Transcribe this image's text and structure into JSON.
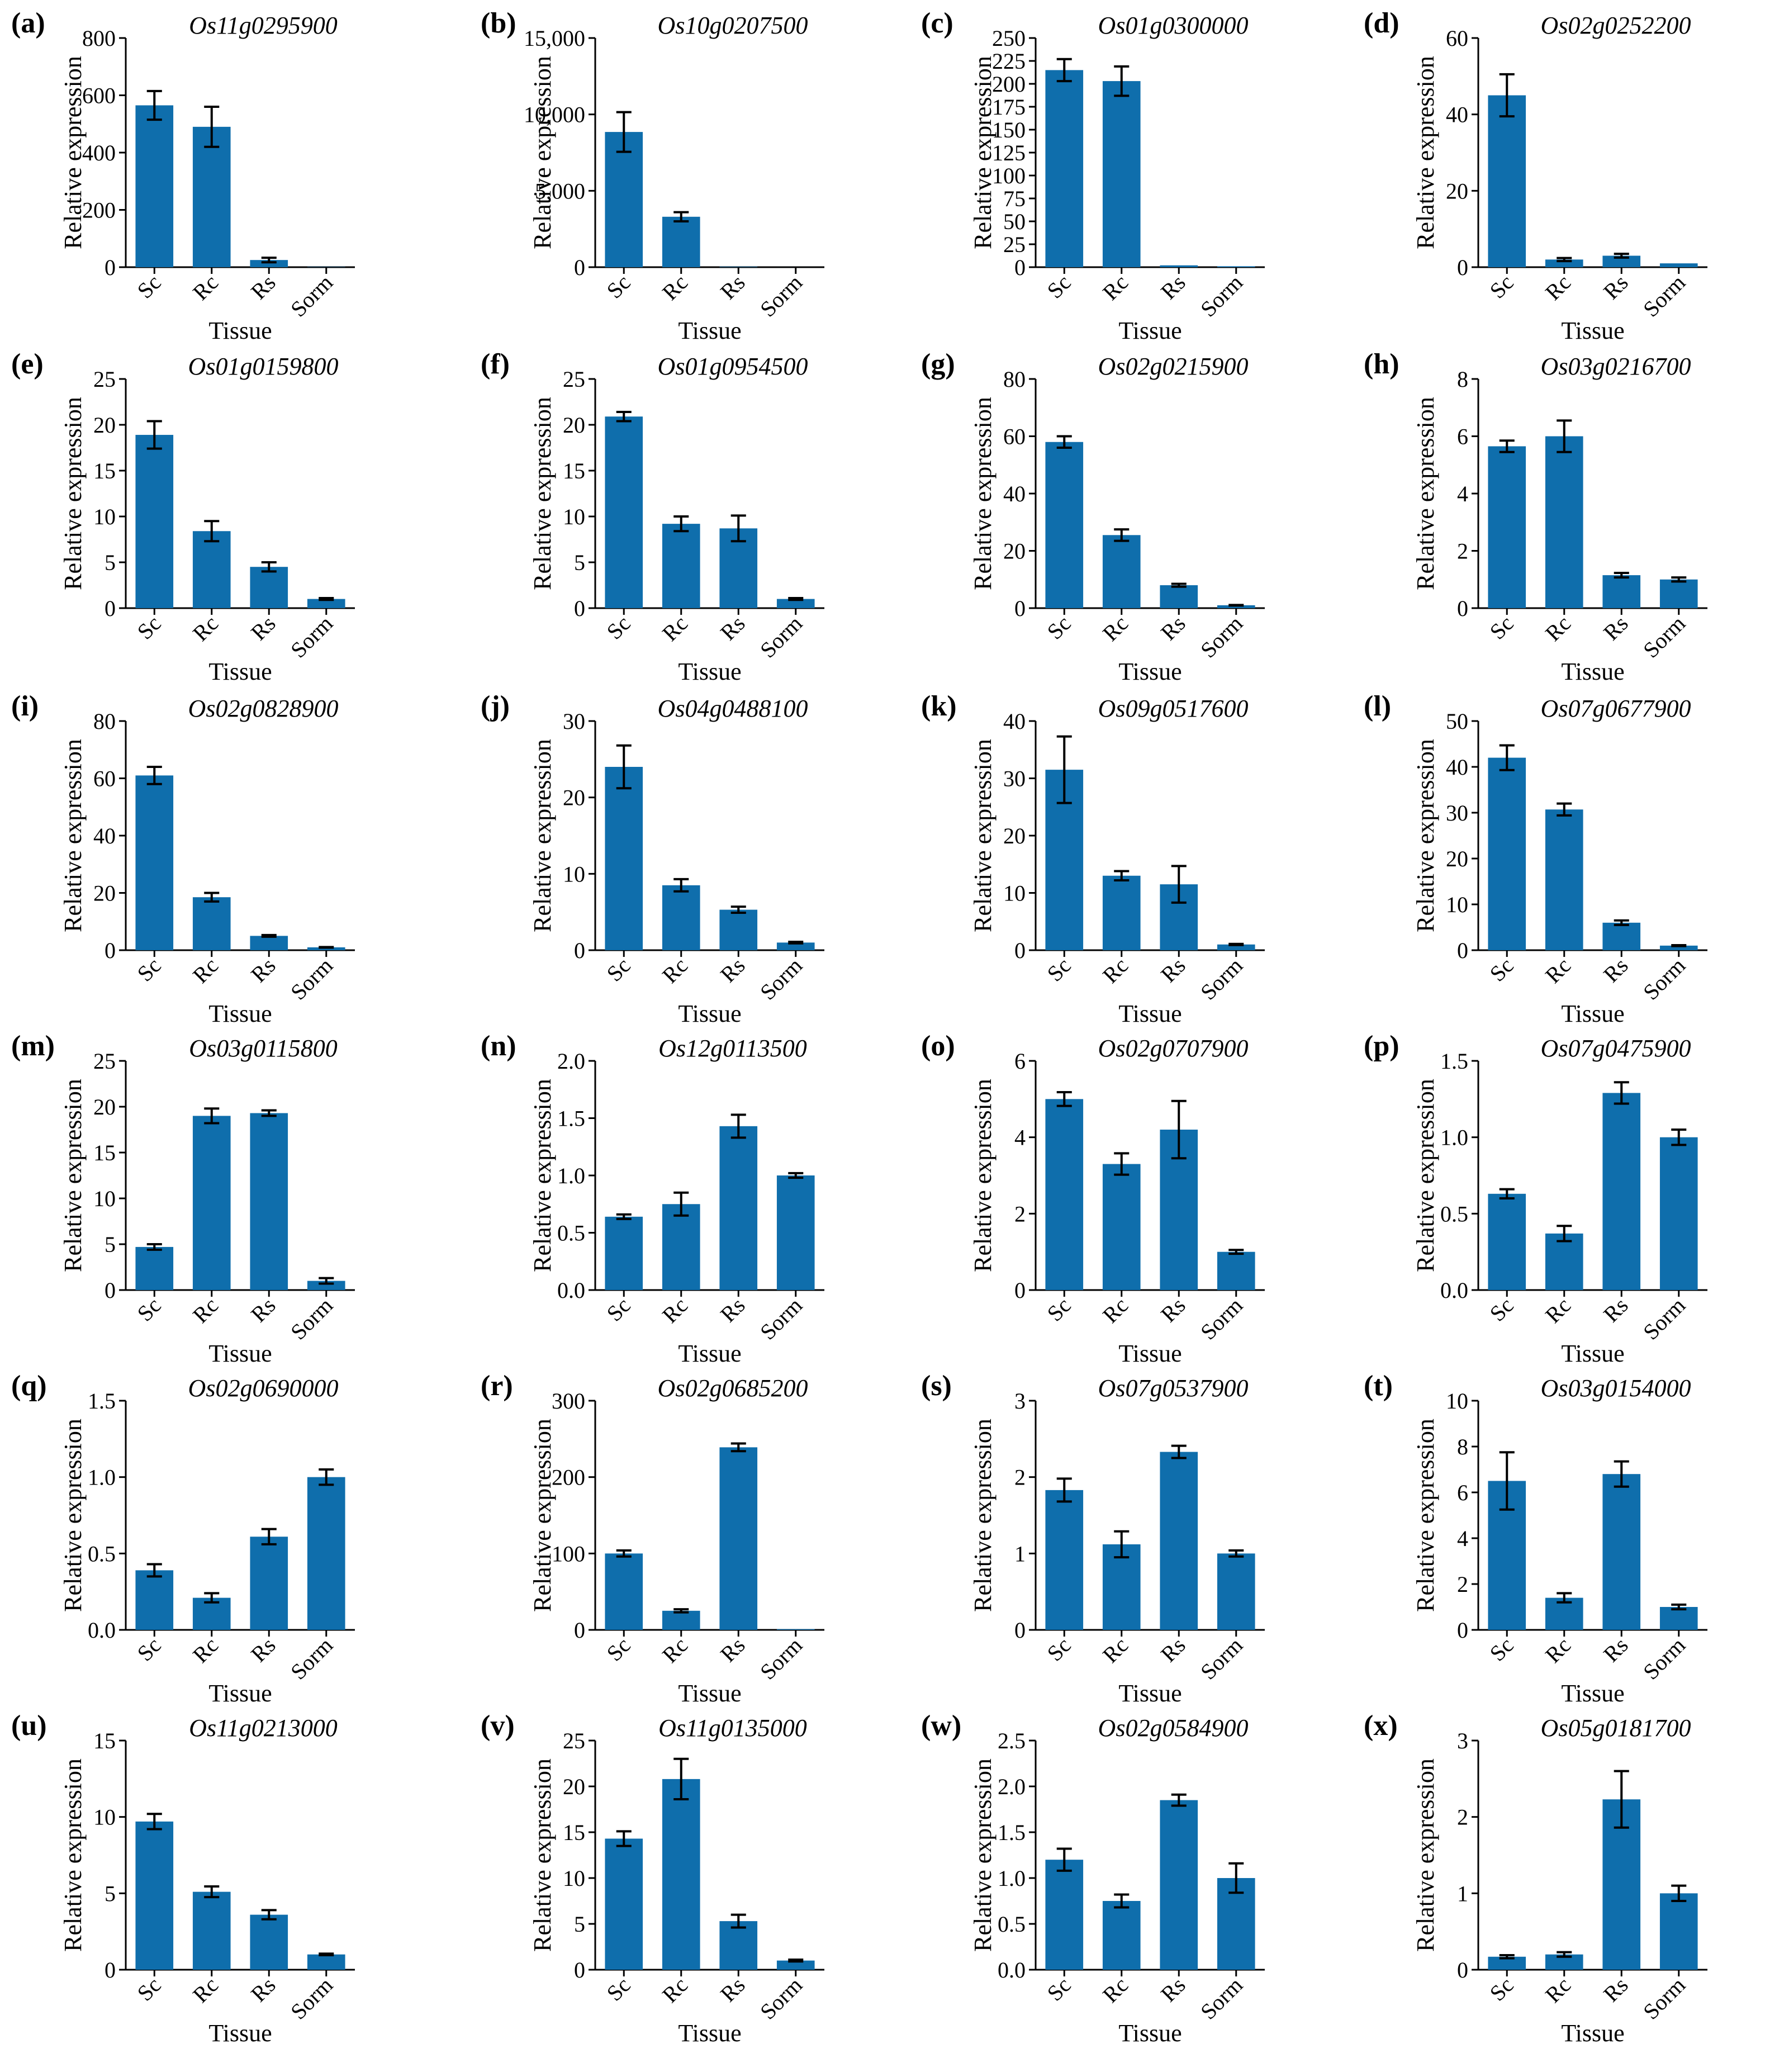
{
  "figure": {
    "categories": [
      "Sc",
      "Rc",
      "Rs",
      "Sorm"
    ],
    "xlabel": "Tissue",
    "ylabel": "Relative expression",
    "bar_color": "#0f6eac"
  },
  "chart_data": [
    {
      "type": "bar",
      "label": "(a)",
      "title": "Os11g0295900",
      "categories": [
        "Sc",
        "Rc",
        "Rs",
        "Sorm"
      ],
      "values": [
        565,
        490,
        25,
        1
      ],
      "errors": [
        50,
        70,
        8,
        0
      ],
      "ylim": [
        0,
        800
      ],
      "yticks": [
        0,
        200,
        400,
        600,
        800
      ],
      "ytick_labels": [
        "0",
        "200",
        "400",
        "600",
        "800"
      ],
      "xlabel": "Tissue",
      "ylabel": "Relative expression"
    },
    {
      "type": "bar",
      "label": "(b)",
      "title": "Os10g0207500",
      "categories": [
        "Sc",
        "Rc",
        "Rs",
        "Sorm"
      ],
      "values": [
        8850,
        3300,
        30,
        1
      ],
      "errors": [
        1300,
        300,
        0,
        0
      ],
      "ylim": [
        0,
        15000
      ],
      "yticks": [
        0,
        5000,
        10000,
        15000
      ],
      "ytick_labels": [
        "0",
        "5,000",
        "10,000",
        "15,000"
      ],
      "xlabel": "Tissue",
      "ylabel": "Relative expression"
    },
    {
      "type": "bar",
      "label": "(c)",
      "title": "Os01g0300000",
      "categories": [
        "Sc",
        "Rc",
        "Rs",
        "Sorm"
      ],
      "values": [
        215,
        203,
        2,
        1
      ],
      "errors": [
        12,
        16,
        0,
        0
      ],
      "ylim": [
        0,
        250
      ],
      "yticks": [
        0,
        25,
        50,
        75,
        100,
        125,
        150,
        175,
        200,
        225,
        250
      ],
      "ytick_labels": [
        "0",
        "25",
        "50",
        "75",
        "100",
        "125",
        "150",
        "175",
        "200",
        "225",
        "250"
      ],
      "xlabel": "Tissue",
      "ylabel": "Relative expression"
    },
    {
      "type": "bar",
      "label": "(d)",
      "title": "Os02g0252200",
      "categories": [
        "Sc",
        "Rc",
        "Rs",
        "Sorm"
      ],
      "values": [
        45,
        2,
        3,
        1
      ],
      "errors": [
        5.5,
        0.4,
        0.5,
        0
      ],
      "ylim": [
        0,
        60
      ],
      "yticks": [
        0,
        20,
        40,
        60
      ],
      "ytick_labels": [
        "0",
        "20",
        "40",
        "60"
      ],
      "xlabel": "Tissue",
      "ylabel": "Relative expression"
    },
    {
      "type": "bar",
      "label": "(e)",
      "title": "Os01g0159800",
      "categories": [
        "Sc",
        "Rc",
        "Rs",
        "Sorm"
      ],
      "values": [
        18.9,
        8.4,
        4.5,
        1
      ],
      "errors": [
        1.5,
        1.1,
        0.5,
        0.1
      ],
      "ylim": [
        0,
        25
      ],
      "yticks": [
        0,
        5,
        10,
        15,
        20,
        25
      ],
      "ytick_labels": [
        "0",
        "5",
        "10",
        "15",
        "20",
        "25"
      ],
      "xlabel": "Tissue",
      "ylabel": "Relative expression"
    },
    {
      "type": "bar",
      "label": "(f)",
      "title": "Os01g0954500",
      "categories": [
        "Sc",
        "Rc",
        "Rs",
        "Sorm"
      ],
      "values": [
        20.9,
        9.2,
        8.7,
        1
      ],
      "errors": [
        0.5,
        0.8,
        1.4,
        0.1
      ],
      "ylim": [
        0,
        25
      ],
      "yticks": [
        0,
        5,
        10,
        15,
        20,
        25
      ],
      "ytick_labels": [
        "0",
        "5",
        "10",
        "15",
        "20",
        "25"
      ],
      "xlabel": "Tissue",
      "ylabel": "Relative expression"
    },
    {
      "type": "bar",
      "label": "(g)",
      "title": "Os02g0215900",
      "categories": [
        "Sc",
        "Rc",
        "Rs",
        "Sorm"
      ],
      "values": [
        58,
        25.5,
        8,
        1
      ],
      "errors": [
        2,
        2,
        0.5,
        0.1
      ],
      "ylim": [
        0,
        80
      ],
      "yticks": [
        0,
        20,
        40,
        60,
        80
      ],
      "ytick_labels": [
        "0",
        "20",
        "40",
        "60",
        "80"
      ],
      "xlabel": "Tissue",
      "ylabel": "Relative expression"
    },
    {
      "type": "bar",
      "label": "(h)",
      "title": "Os03g0216700",
      "categories": [
        "Sc",
        "Rc",
        "Rs",
        "Sorm"
      ],
      "values": [
        5.65,
        6,
        1.15,
        1
      ],
      "errors": [
        0.2,
        0.55,
        0.08,
        0.07
      ],
      "ylim": [
        0,
        8
      ],
      "yticks": [
        0,
        2,
        4,
        6,
        8
      ],
      "ytick_labels": [
        "0",
        "2",
        "4",
        "6",
        "8"
      ],
      "xlabel": "Tissue",
      "ylabel": "Relative expression"
    },
    {
      "type": "bar",
      "label": "(i)",
      "title": "Os02g0828900",
      "categories": [
        "Sc",
        "Rc",
        "Rs",
        "Sorm"
      ],
      "values": [
        61,
        18.5,
        5,
        1
      ],
      "errors": [
        3,
        1.5,
        0.3,
        0.1
      ],
      "ylim": [
        0,
        80
      ],
      "yticks": [
        0,
        20,
        40,
        60,
        80
      ],
      "ytick_labels": [
        "0",
        "20",
        "40",
        "60",
        "80"
      ],
      "xlabel": "Tissue",
      "ylabel": "Relative expression"
    },
    {
      "type": "bar",
      "label": "(j)",
      "title": "Os04g0488100",
      "categories": [
        "Sc",
        "Rc",
        "Rs",
        "Sorm"
      ],
      "values": [
        24,
        8.5,
        5.3,
        1
      ],
      "errors": [
        2.8,
        0.8,
        0.4,
        0.1
      ],
      "ylim": [
        0,
        30
      ],
      "yticks": [
        0,
        10,
        20,
        30
      ],
      "ytick_labels": [
        "0",
        "10",
        "20",
        "30"
      ],
      "xlabel": "Tissue",
      "ylabel": "Relative expression"
    },
    {
      "type": "bar",
      "label": "(k)",
      "title": "Os09g0517600",
      "categories": [
        "Sc",
        "Rc",
        "Rs",
        "Sorm"
      ],
      "values": [
        31.5,
        13,
        11.5,
        1
      ],
      "errors": [
        5.8,
        0.8,
        3.2,
        0.1
      ],
      "ylim": [
        0,
        40
      ],
      "yticks": [
        0,
        10,
        20,
        30,
        40
      ],
      "ytick_labels": [
        "0",
        "10",
        "20",
        "30",
        "40"
      ],
      "xlabel": "Tissue",
      "ylabel": "Relative expression"
    },
    {
      "type": "bar",
      "label": "(l)",
      "title": "Os07g0677900",
      "categories": [
        "Sc",
        "Rc",
        "Rs",
        "Sorm"
      ],
      "values": [
        42,
        30.7,
        6,
        1
      ],
      "errors": [
        2.7,
        1.3,
        0.5,
        0.1
      ],
      "ylim": [
        0,
        50
      ],
      "yticks": [
        0,
        10,
        20,
        30,
        40,
        50
      ],
      "ytick_labels": [
        "0",
        "10",
        "20",
        "30",
        "40",
        "50"
      ],
      "xlabel": "Tissue",
      "ylabel": "Relative expression"
    },
    {
      "type": "bar",
      "label": "(m)",
      "title": "Os03g0115800",
      "categories": [
        "Sc",
        "Rc",
        "Rs",
        "Sorm"
      ],
      "values": [
        4.7,
        19,
        19.3,
        1
      ],
      "errors": [
        0.3,
        0.8,
        0.3,
        0.3
      ],
      "ylim": [
        0,
        25
      ],
      "yticks": [
        0,
        5,
        10,
        15,
        20,
        25
      ],
      "ytick_labels": [
        "0",
        "5",
        "10",
        "15",
        "20",
        "25"
      ],
      "xlabel": "Tissue",
      "ylabel": "Relative expression"
    },
    {
      "type": "bar",
      "label": "(n)",
      "title": "Os12g0113500",
      "categories": [
        "Sc",
        "Rc",
        "Rs",
        "Sorm"
      ],
      "values": [
        0.64,
        0.75,
        1.43,
        1
      ],
      "errors": [
        0.02,
        0.1,
        0.1,
        0.02
      ],
      "ylim": [
        0,
        2
      ],
      "yticks": [
        0,
        0.5,
        1,
        1.5,
        2
      ],
      "ytick_labels": [
        "0.0",
        "0.5",
        "1.0",
        "1.5",
        "2.0"
      ],
      "xlabel": "Tissue",
      "ylabel": "Relative expression"
    },
    {
      "type": "bar",
      "label": "(o)",
      "title": "Os02g0707900",
      "categories": [
        "Sc",
        "Rc",
        "Rs",
        "Sorm"
      ],
      "values": [
        5,
        3.3,
        4.2,
        1
      ],
      "errors": [
        0.18,
        0.28,
        0.75,
        0.05
      ],
      "ylim": [
        0,
        6
      ],
      "yticks": [
        0,
        2,
        4,
        6
      ],
      "ytick_labels": [
        "0",
        "2",
        "4",
        "6"
      ],
      "xlabel": "Tissue",
      "ylabel": "Relative expression"
    },
    {
      "type": "bar",
      "label": "(p)",
      "title": "Os07g0475900",
      "categories": [
        "Sc",
        "Rc",
        "Rs",
        "Sorm"
      ],
      "values": [
        0.63,
        0.37,
        1.29,
        1
      ],
      "errors": [
        0.03,
        0.05,
        0.07,
        0.05
      ],
      "ylim": [
        0,
        1.5
      ],
      "yticks": [
        0,
        0.5,
        1,
        1.5
      ],
      "ytick_labels": [
        "0.0",
        "0.5",
        "1.0",
        "1.5"
      ],
      "xlabel": "Tissue",
      "ylabel": "Relative expression"
    },
    {
      "type": "bar",
      "label": "(q)",
      "title": "Os02g0690000",
      "categories": [
        "Sc",
        "Rc",
        "Rs",
        "Sorm"
      ],
      "values": [
        0.39,
        0.21,
        0.61,
        1
      ],
      "errors": [
        0.04,
        0.03,
        0.05,
        0.05
      ],
      "ylim": [
        0,
        1.5
      ],
      "yticks": [
        0,
        0.5,
        1,
        1.5
      ],
      "ytick_labels": [
        "0.0",
        "0.5",
        "1.0",
        "1.5"
      ],
      "xlabel": "Tissue",
      "ylabel": "Relative expression"
    },
    {
      "type": "bar",
      "label": "(r)",
      "title": "Os02g0685200",
      "categories": [
        "Sc",
        "Rc",
        "Rs",
        "Sorm"
      ],
      "values": [
        100,
        25,
        239,
        1
      ],
      "errors": [
        4,
        2,
        5,
        0
      ],
      "ylim": [
        0,
        300
      ],
      "yticks": [
        0,
        100,
        200,
        300
      ],
      "ytick_labels": [
        "0",
        "100",
        "200",
        "300"
      ],
      "xlabel": "Tissue",
      "ylabel": "Relative expression"
    },
    {
      "type": "bar",
      "label": "(s)",
      "title": "Os07g0537900",
      "categories": [
        "Sc",
        "Rc",
        "Rs",
        "Sorm"
      ],
      "values": [
        1.83,
        1.12,
        2.33,
        1
      ],
      "errors": [
        0.15,
        0.17,
        0.08,
        0.04
      ],
      "ylim": [
        0,
        3
      ],
      "yticks": [
        0,
        1,
        2,
        3
      ],
      "ytick_labels": [
        "0",
        "1",
        "2",
        "3"
      ],
      "xlabel": "Tissue",
      "ylabel": "Relative expression"
    },
    {
      "type": "bar",
      "label": "(t)",
      "title": "Os03g0154000",
      "categories": [
        "Sc",
        "Rc",
        "Rs",
        "Sorm"
      ],
      "values": [
        6.5,
        1.4,
        6.8,
        1
      ],
      "errors": [
        1.25,
        0.2,
        0.55,
        0.1
      ],
      "ylim": [
        0,
        10
      ],
      "yticks": [
        0,
        2,
        4,
        6,
        8,
        10
      ],
      "ytick_labels": [
        "0",
        "2",
        "4",
        "6",
        "8",
        "10"
      ],
      "xlabel": "Tissue",
      "ylabel": "Relative expression"
    },
    {
      "type": "bar",
      "label": "(u)",
      "title": "Os11g0213000",
      "categories": [
        "Sc",
        "Rc",
        "Rs",
        "Sorm"
      ],
      "values": [
        9.7,
        5.1,
        3.6,
        1
      ],
      "errors": [
        0.5,
        0.35,
        0.3,
        0.05
      ],
      "ylim": [
        0,
        15
      ],
      "yticks": [
        0,
        5,
        10,
        15
      ],
      "ytick_labels": [
        "0",
        "5",
        "10",
        "15"
      ],
      "xlabel": "Tissue",
      "ylabel": "Relative expression"
    },
    {
      "type": "bar",
      "label": "(v)",
      "title": "Os11g0135000",
      "categories": [
        "Sc",
        "Rc",
        "Rs",
        "Sorm"
      ],
      "values": [
        14.3,
        20.8,
        5.3,
        1
      ],
      "errors": [
        0.8,
        2.2,
        0.7,
        0.1
      ],
      "ylim": [
        0,
        25
      ],
      "yticks": [
        0,
        5,
        10,
        15,
        20,
        25
      ],
      "ytick_labels": [
        "0",
        "5",
        "10",
        "15",
        "20",
        "25"
      ],
      "xlabel": "Tissue",
      "ylabel": "Relative expression"
    },
    {
      "type": "bar",
      "label": "(w)",
      "title": "Os02g0584900",
      "categories": [
        "Sc",
        "Rc",
        "Rs",
        "Sorm"
      ],
      "values": [
        1.2,
        0.75,
        1.85,
        1
      ],
      "errors": [
        0.12,
        0.07,
        0.06,
        0.16
      ],
      "ylim": [
        0,
        2.5
      ],
      "yticks": [
        0,
        0.5,
        1,
        1.5,
        2,
        2.5
      ],
      "ytick_labels": [
        "0.0",
        "0.5",
        "1.0",
        "1.5",
        "2.0",
        "2.5"
      ],
      "xlabel": "Tissue",
      "ylabel": "Relative expression"
    },
    {
      "type": "bar",
      "label": "(x)",
      "title": "Os05g0181700",
      "categories": [
        "Sc",
        "Rc",
        "Rs",
        "Sorm"
      ],
      "values": [
        0.17,
        0.2,
        2.23,
        1
      ],
      "errors": [
        0.02,
        0.03,
        0.37,
        0.1
      ],
      "ylim": [
        0,
        3
      ],
      "yticks": [
        0,
        1,
        2,
        3
      ],
      "ytick_labels": [
        "0",
        "1",
        "2",
        "3"
      ],
      "xlabel": "Tissue",
      "ylabel": "Relative expression"
    }
  ]
}
